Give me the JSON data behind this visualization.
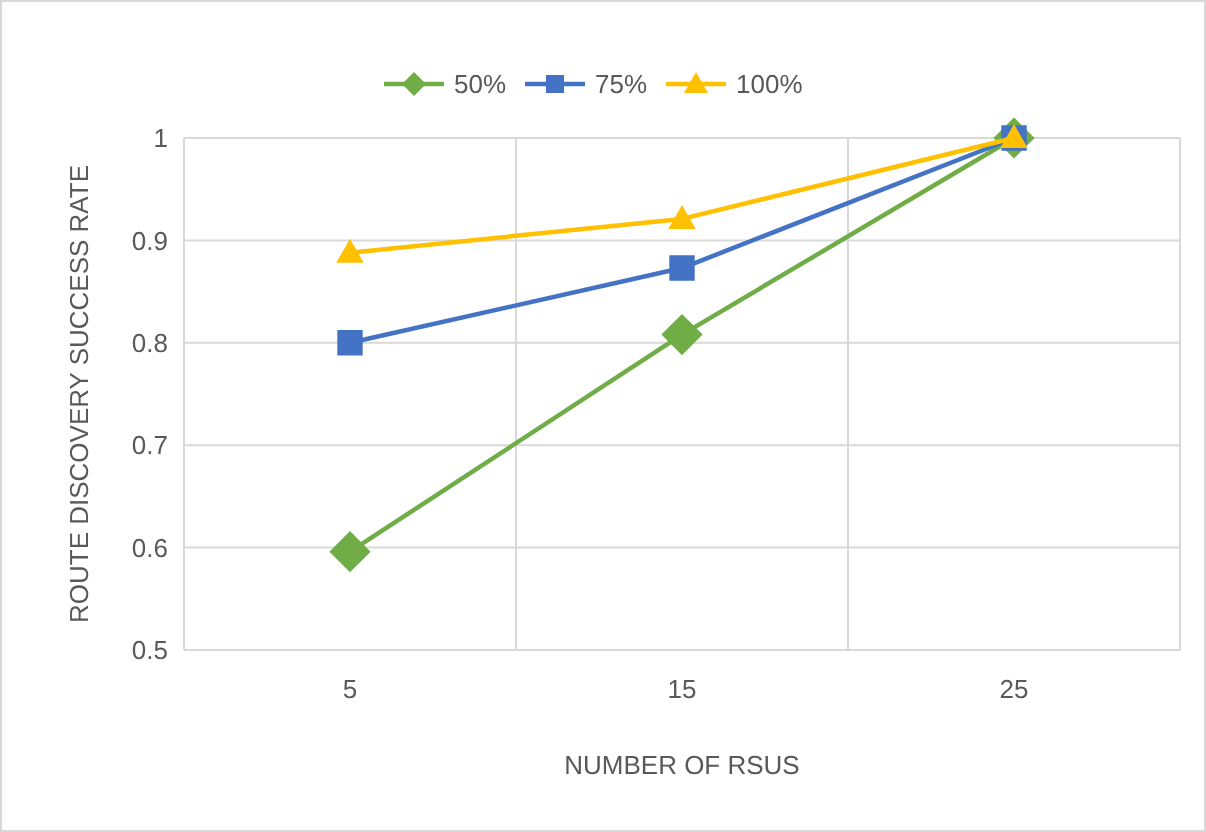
{
  "chart_data": {
    "type": "line",
    "xlabel": "NUMBER OF RSUS",
    "ylabel": "ROUTE DISCOVERY SUCCESS RATE",
    "categories": [
      "5",
      "15",
      "25"
    ],
    "series": [
      {
        "name": "50%",
        "color": "#70ad47",
        "marker": "diamond",
        "values": [
          0.596,
          0.808,
          1.0
        ]
      },
      {
        "name": "75%",
        "color": "#4472c4",
        "marker": "square",
        "values": [
          0.8,
          0.873,
          1.0
        ]
      },
      {
        "name": "100%",
        "color": "#ffc000",
        "marker": "triangle",
        "values": [
          0.888,
          0.921,
          1.0
        ]
      }
    ],
    "ylim": [
      0.5,
      1
    ],
    "yticks": [
      0.5,
      0.6,
      0.7,
      0.8,
      0.9,
      1
    ],
    "grid": true,
    "legend": "top",
    "line_style": "solid"
  }
}
